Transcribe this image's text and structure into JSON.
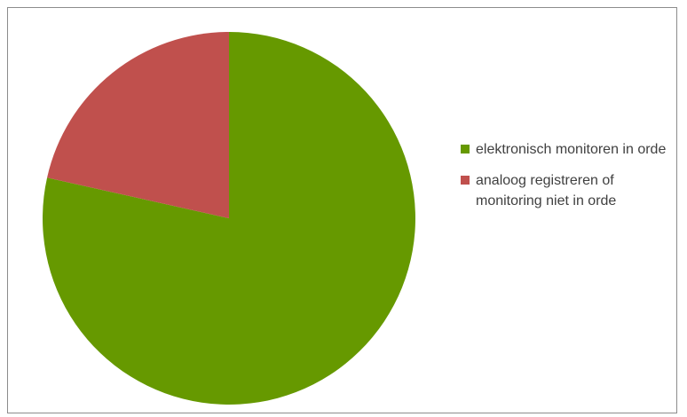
{
  "chart_data": {
    "type": "pie",
    "slices": [
      {
        "label": "elektronisch monitoren in orde",
        "value": 78.5,
        "color": "#669900"
      },
      {
        "label": "analoog registreren of monitoring niet in orde",
        "value": 21.5,
        "color": "#c0504d"
      }
    ],
    "start": "12 o'clock",
    "direction": "clockwise",
    "legend_position": "right"
  }
}
